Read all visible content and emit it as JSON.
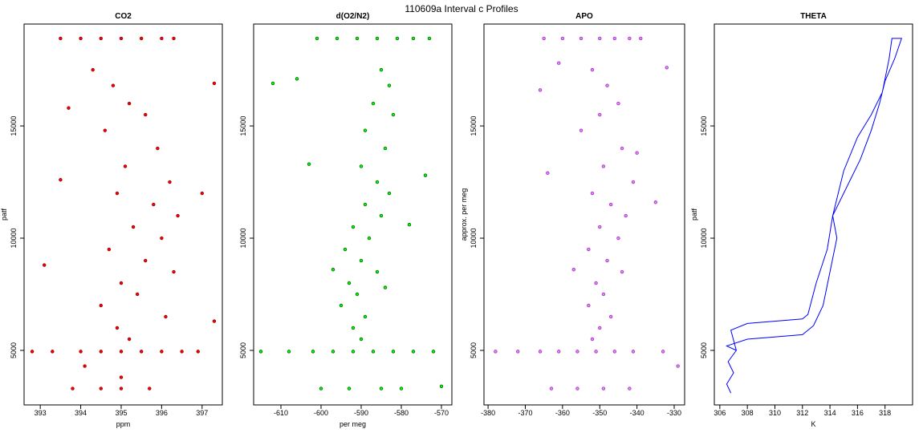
{
  "title": "110609a   Interval c Profiles",
  "chart_data": [
    {
      "type": "scatter",
      "title": "CO2",
      "x_label": "ppm",
      "y_label": "patf",
      "color": "#ff0000",
      "edge_color": "#990000",
      "xlim": [
        392.6,
        397.5
      ],
      "xticks": [
        393,
        394,
        395,
        396,
        397
      ],
      "ylim": [
        2570,
        19540
      ],
      "yticks": [
        5000,
        10000,
        15000
      ],
      "x": [
        393.5,
        394,
        394.5,
        395,
        395.5,
        396,
        396.3,
        392.8,
        393.3,
        394,
        394.5,
        395,
        395.5,
        396,
        396.5,
        396.9,
        393.8,
        394.5,
        395,
        395.7,
        394.3,
        394.8,
        395.2,
        395.6,
        394.6,
        395.9,
        395.1,
        396.2,
        394.9,
        395.8,
        396.4,
        395.3,
        396,
        394.7,
        395.6,
        396.3,
        395,
        395.4,
        394.5,
        396.1,
        394.9,
        395.2,
        393.1,
        397.3,
        393.7,
        397,
        393.5,
        397.3,
        394.1,
        395
      ],
      "values": [
        18900,
        18900,
        18900,
        18900,
        18900,
        18900,
        18900,
        4950,
        4950,
        4950,
        4950,
        4950,
        4950,
        4950,
        4950,
        4950,
        3300,
        3300,
        3300,
        3300,
        17500,
        16800,
        16000,
        15500,
        14800,
        14000,
        13200,
        12500,
        12000,
        11500,
        11000,
        10500,
        10000,
        9500,
        9000,
        8500,
        8000,
        7500,
        7000,
        6500,
        6000,
        5500,
        8800,
        16900,
        15800,
        12000,
        12600,
        6300,
        4300,
        3800
      ]
    },
    {
      "type": "scatter",
      "title": "d(O2/N2)",
      "x_label": "per meg",
      "color": "#00ff00",
      "edge_color": "#006400",
      "xlim": [
        -616.8,
        -567.4
      ],
      "xticks": [
        -610,
        -600,
        -590,
        -580,
        -570
      ],
      "ylim": [
        2570,
        19540
      ],
      "yticks": [
        5000,
        10000,
        15000
      ],
      "x": [
        -601,
        -596,
        -591,
        -586,
        -581,
        -577,
        -573,
        -615,
        -608,
        -602,
        -597,
        -592,
        -587,
        -582,
        -577,
        -572,
        -600,
        -593,
        -585,
        -580,
        -585,
        -583,
        -587,
        -582,
        -589,
        -584,
        -590,
        -586,
        -583,
        -589,
        -585,
        -592,
        -588,
        -594,
        -590,
        -586,
        -593,
        -591,
        -595,
        -589,
        -592,
        -590,
        -606,
        -574,
        -612,
        -578,
        -603,
        -570,
        -597,
        -584
      ],
      "values": [
        18900,
        18900,
        18900,
        18900,
        18900,
        18900,
        18900,
        4950,
        4950,
        4950,
        4950,
        4950,
        4950,
        4950,
        4950,
        4950,
        3300,
        3300,
        3300,
        3300,
        17500,
        16800,
        16000,
        15500,
        14800,
        14000,
        13200,
        12500,
        12000,
        11500,
        11000,
        10500,
        10000,
        9500,
        9000,
        8500,
        8000,
        7500,
        7000,
        6500,
        6000,
        5500,
        17100,
        12800,
        16900,
        10600,
        13300,
        3400,
        8600,
        7800
      ]
    },
    {
      "type": "scatter",
      "title": "APO",
      "y_label": "approx. per meg",
      "color": "#ee82ee",
      "edge_color": "#9932cc",
      "xlim": [
        -381.1,
        -327.2
      ],
      "xticks": [
        -380,
        -370,
        -360,
        -350,
        -340,
        -330
      ],
      "ylim": [
        2570,
        19540
      ],
      "yticks": [
        5000,
        10000,
        15000
      ],
      "x": [
        -365,
        -360,
        -355,
        -350,
        -346,
        -342,
        -339,
        -378,
        -372,
        -366,
        -361,
        -356,
        -351,
        -346,
        -341,
        -333,
        -363,
        -356,
        -349,
        -342,
        -352,
        -348,
        -345,
        -350,
        -355,
        -344,
        -349,
        -341,
        -352,
        -347,
        -343,
        -350,
        -345,
        -353,
        -348,
        -344,
        -351,
        -349,
        -353,
        -347,
        -350,
        -352,
        -361,
        -332,
        -366,
        -335,
        -357,
        -329,
        -364,
        -340
      ],
      "values": [
        18900,
        18900,
        18900,
        18900,
        18900,
        18900,
        18900,
        4950,
        4950,
        4950,
        4950,
        4950,
        4950,
        4950,
        4950,
        4950,
        3300,
        3300,
        3300,
        3300,
        17500,
        16800,
        16000,
        15500,
        14800,
        14000,
        13200,
        12500,
        12000,
        11500,
        11000,
        10500,
        10000,
        9500,
        9000,
        8500,
        8000,
        7500,
        7000,
        6500,
        6000,
        5500,
        17800,
        17600,
        16600,
        11600,
        8600,
        4300,
        12900,
        13800
      ]
    },
    {
      "type": "line",
      "title": "THETA",
      "x_label": "K",
      "y_label": "patf",
      "color": "#0000ff",
      "xlim": [
        305.6,
        320
      ],
      "xticks": [
        306,
        308,
        310,
        312,
        314,
        316,
        318
      ],
      "ylim": [
        2570,
        19540
      ],
      "yticks": [
        5000,
        10000,
        15000
      ],
      "x": [
        306.8,
        306.5,
        307,
        306.6,
        307.2,
        306.5,
        308,
        312,
        312.8,
        313.5,
        314,
        314.5,
        314.2,
        315,
        316.2,
        317,
        317.6,
        318,
        318.7,
        319.2,
        318.5,
        318.3,
        317.8,
        317,
        316,
        315,
        314.2,
        313.8,
        313,
        312.4,
        312,
        308,
        306.8,
        307.2
      ],
      "values": [
        3100,
        3500,
        4000,
        4500,
        5000,
        5200,
        5500,
        5700,
        6100,
        7000,
        8500,
        10000,
        11000,
        12000,
        13500,
        14800,
        16000,
        17000,
        18000,
        18900,
        18900,
        18000,
        16500,
        15500,
        14500,
        13000,
        11000,
        9500,
        8000,
        6600,
        6400,
        6200,
        5900,
        5000
      ]
    }
  ]
}
